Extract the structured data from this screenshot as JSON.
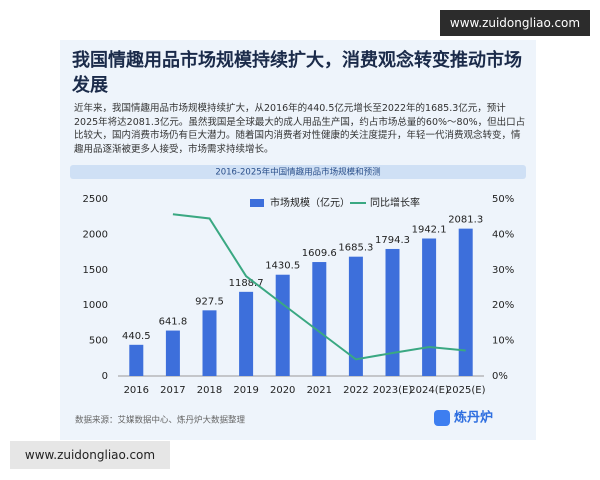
{
  "header": {
    "title": "我国情趣用品市场规模持续扩大，消费观念转变推动市场发展",
    "text": "近年来，我国情趣用品市场规模持续扩大，从2016年的440.5亿元增长至2022年的1685.3亿元，预计2025年将达2081.3亿元。虽然我国是全球最大的成人用品生产国，约占市场总量的60%～80%，但出口占比较大，国内消费市场仍有巨大潜力。随着国内消费者对性健康的关注度提升，年轻一代消费观念转变，情趣用品逐渐被更多人接受，市场需求持续增长。"
  },
  "chart_data": {
    "type": "bar",
    "title": "2016-2025年中国情趣用品市场规模和预测",
    "categories": [
      "2016",
      "2017",
      "2018",
      "2019",
      "2020",
      "2021",
      "2022",
      "2023(E)",
      "2024(E)",
      "2025(E)"
    ],
    "series": [
      {
        "name": "市场规模（亿元）",
        "color": "#3d6fdb",
        "values": [
          440.5,
          641.8,
          927.5,
          1188.7,
          1430.5,
          1609.6,
          1685.3,
          1794.3,
          1942.1,
          2081.3
        ]
      },
      {
        "name": "同比增长率",
        "color": "#3aa882",
        "type": "line",
        "axis": "y2",
        "values": [
          null,
          45.7,
          44.5,
          28.2,
          20.3,
          12.5,
          4.7,
          6.5,
          8.2,
          7.2
        ]
      }
    ],
    "ylim": [
      0,
      2500
    ],
    "yticks": [
      0,
      500,
      1000,
      1500,
      2000,
      2500
    ],
    "y2lim": [
      0,
      50
    ],
    "y2ticks": [
      {
        "value": 0,
        "label": "0%"
      },
      {
        "value": 10,
        "label": "10%"
      },
      {
        "value": 20,
        "label": "20%"
      },
      {
        "value": 30,
        "label": "30%"
      },
      {
        "value": 40,
        "label": "40%"
      },
      {
        "value": 50,
        "label": "50%"
      }
    ],
    "grid": false
  },
  "footer": {
    "source": "数据来源：艾媒数据中心、炼丹炉大数据整理",
    "logo": "炼丹炉"
  },
  "watermarks": [
    "www.zuidongliao.com",
    "www.zuidongliao.com"
  ]
}
